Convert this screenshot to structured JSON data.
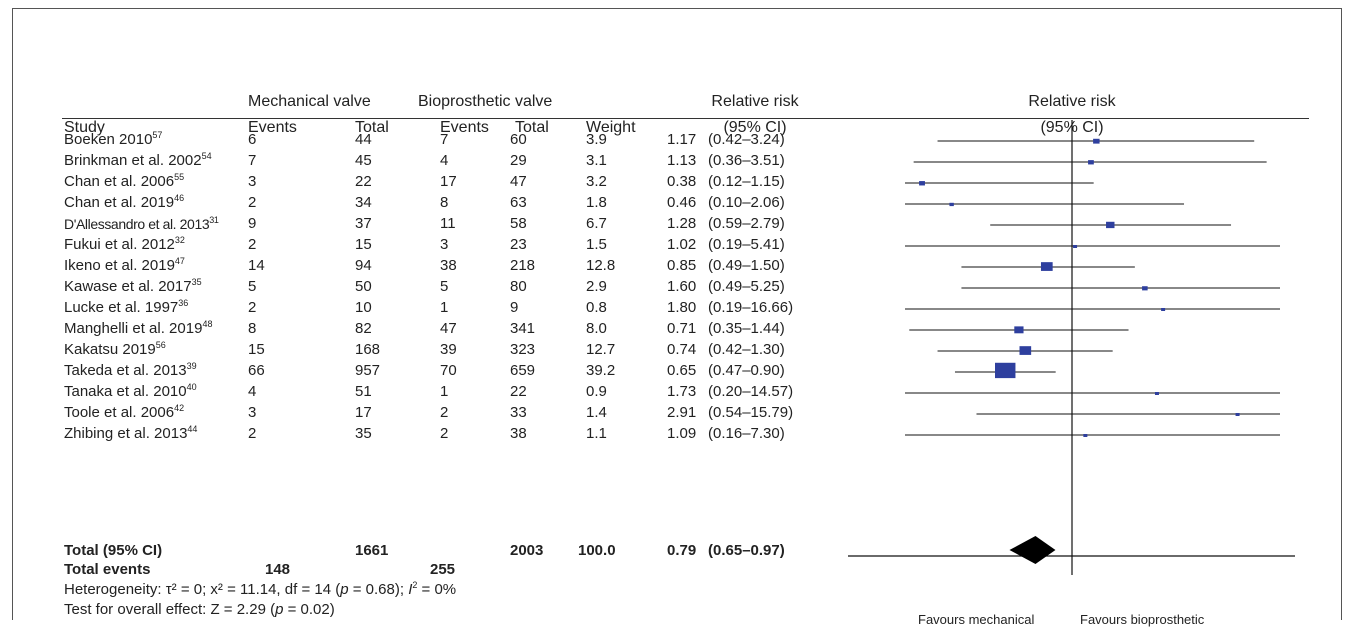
{
  "header": {
    "group1": "Mechanical valve",
    "group2": "Bioprosthetic valve",
    "rr_title": "Relative risk",
    "study": "Study",
    "events": "Events",
    "total": "Total",
    "weight": "Weight",
    "ci": "(95% CI)",
    "plot_title": "Relative risk",
    "plot_ci": "(95% CI)"
  },
  "studies": [
    {
      "name": "Boeken 2010",
      "ref": "57",
      "me": "6",
      "mt": "44",
      "be": "7",
      "bt": "60",
      "w": "3.9",
      "rr": "1.17",
      "ci": "(0.42–3.24)"
    },
    {
      "name": "Brinkman et al. 2002",
      "ref": "54",
      "me": "7",
      "mt": "45",
      "be": "4",
      "bt": "29",
      "w": "3.1",
      "rr": "1.13",
      "ci": "(0.36–3.51)"
    },
    {
      "name": "Chan et al. 2006",
      "ref": "55",
      "me": "3",
      "mt": "22",
      "be": "17",
      "bt": "47",
      "w": "3.2",
      "rr": "0.38",
      "ci": "(0.12–1.15)"
    },
    {
      "name": "Chan et al. 2019",
      "ref": "46",
      "me": "2",
      "mt": "34",
      "be": "8",
      "bt": "63",
      "w": "1.8",
      "rr": "0.46",
      "ci": "(0.10–2.06)"
    },
    {
      "name": "D'Allessandro et al. 2013",
      "ref": "31",
      "me": "9",
      "mt": "37",
      "be": "11",
      "bt": "58",
      "w": "6.7",
      "rr": "1.28",
      "ci": "(0.59–2.79)"
    },
    {
      "name": "Fukui et al. 2012",
      "ref": "32",
      "me": "2",
      "mt": "15",
      "be": "3",
      "bt": "23",
      "w": "1.5",
      "rr": "1.02",
      "ci": "(0.19–5.41)"
    },
    {
      "name": "Ikeno et al. 2019",
      "ref": "47",
      "me": "14",
      "mt": "94",
      "be": "38",
      "bt": "218",
      "w": "12.8",
      "rr": "0.85",
      "ci": "(0.49–1.50)"
    },
    {
      "name": "Kawase et al. 2017",
      "ref": "35",
      "me": "5",
      "mt": "50",
      "be": "5",
      "bt": "80",
      "w": "2.9",
      "rr": "1.60",
      "ci": "(0.49–5.25)"
    },
    {
      "name": "Lucke et al. 1997",
      "ref": "36",
      "me": "2",
      "mt": "10",
      "be": "1",
      "bt": "9",
      "w": "0.8",
      "rr": "1.80",
      "ci": "(0.19–16.66)"
    },
    {
      "name": "Manghelli et al. 2019",
      "ref": "48",
      "me": "8",
      "mt": "82",
      "be": "47",
      "bt": "341",
      "w": "8.0",
      "rr": "0.71",
      "ci": "(0.35–1.44)"
    },
    {
      "name": "Kakatsu 2019",
      "ref": "56",
      "me": "15",
      "mt": "168",
      "be": "39",
      "bt": "323",
      "w": "12.7",
      "rr": "0.74",
      "ci": "(0.42–1.30)"
    },
    {
      "name": "Takeda et al. 2013",
      "ref": "39",
      "me": "66",
      "mt": "957",
      "be": "70",
      "bt": "659",
      "w": "39.2",
      "rr": "0.65",
      "ci": "(0.47–0.90)"
    },
    {
      "name": "Tanaka et al. 2010",
      "ref": "40",
      "me": "4",
      "mt": "51",
      "be": "1",
      "bt": "22",
      "w": "0.9",
      "rr": "1.73",
      "ci": "(0.20–14.57)"
    },
    {
      "name": "Toole et al. 2006",
      "ref": "42",
      "me": "3",
      "mt": "17",
      "be": "2",
      "bt": "33",
      "w": "1.4",
      "rr": "2.91",
      "ci": "(0.54–15.79)"
    },
    {
      "name": "Zhibing et al. 2013",
      "ref": "44",
      "me": "2",
      "mt": "35",
      "be": "2",
      "bt": "38",
      "w": "1.1",
      "rr": "1.09",
      "ci": "(0.16–7.30)"
    }
  ],
  "total": {
    "label": "Total (95% CI)",
    "mt": "1661",
    "bt": "2003",
    "w": "100.0",
    "rr": "0.79",
    "ci": "(0.65–0.97)"
  },
  "total_events": {
    "label": "Total events",
    "me": "148",
    "be": "255"
  },
  "heterogeneity": {
    "prefix": "Heterogeneity: τ² = 0; x² = 11.14, df = 14 (",
    "p": "p",
    "mid": " = 0.68); ",
    "i": "I",
    "i2": "2",
    "suffix": " = 0%"
  },
  "overall_effect": {
    "prefix": "Test for overall effect: Z = 2.29 (",
    "p": "p",
    "suffix": " = 0.02)"
  },
  "favours": {
    "left": "Favours mechanical",
    "right": "Favours bioprosthetic"
  },
  "colors": {
    "marker": "#2e3f9e",
    "line": "#111111",
    "diamond": "#000000"
  },
  "chart_data": {
    "type": "forest",
    "scale": "log",
    "null_value": 1,
    "points": [
      {
        "study": "Boeken 2010",
        "rr": 1.17,
        "lo": 0.42,
        "hi": 3.24,
        "weight": 3.9
      },
      {
        "study": "Brinkman et al. 2002",
        "rr": 1.13,
        "lo": 0.36,
        "hi": 3.51,
        "weight": 3.1
      },
      {
        "study": "Chan et al. 2006",
        "rr": 0.38,
        "lo": 0.12,
        "hi": 1.15,
        "weight": 3.2
      },
      {
        "study": "Chan et al. 2019",
        "rr": 0.46,
        "lo": 0.1,
        "hi": 2.06,
        "weight": 1.8
      },
      {
        "study": "D'Allessandro et al. 2013",
        "rr": 1.28,
        "lo": 0.59,
        "hi": 2.79,
        "weight": 6.7
      },
      {
        "study": "Fukui et al. 2012",
        "rr": 1.02,
        "lo": 0.19,
        "hi": 5.41,
        "weight": 1.5
      },
      {
        "study": "Ikeno et al. 2019",
        "rr": 0.85,
        "lo": 0.49,
        "hi": 1.5,
        "weight": 12.8
      },
      {
        "study": "Kawase et al. 2017",
        "rr": 1.6,
        "lo": 0.49,
        "hi": 5.25,
        "weight": 2.9
      },
      {
        "study": "Lucke et al. 1997",
        "rr": 1.8,
        "lo": 0.19,
        "hi": 16.66,
        "weight": 0.8
      },
      {
        "study": "Manghelli et al. 2019",
        "rr": 0.71,
        "lo": 0.35,
        "hi": 1.44,
        "weight": 8.0
      },
      {
        "study": "Kakatsu 2019",
        "rr": 0.74,
        "lo": 0.42,
        "hi": 1.3,
        "weight": 12.7
      },
      {
        "study": "Takeda et al. 2013",
        "rr": 0.65,
        "lo": 0.47,
        "hi": 0.9,
        "weight": 39.2
      },
      {
        "study": "Tanaka et al. 2010",
        "rr": 1.73,
        "lo": 0.2,
        "hi": 14.57,
        "weight": 0.9
      },
      {
        "study": "Toole et al. 2006",
        "rr": 2.91,
        "lo": 0.54,
        "hi": 15.79,
        "weight": 1.4
      },
      {
        "study": "Zhibing et al. 2013",
        "rr": 1.09,
        "lo": 0.16,
        "hi": 7.3,
        "weight": 1.1
      }
    ],
    "pooled": {
      "rr": 0.79,
      "lo": 0.65,
      "hi": 0.97
    }
  }
}
